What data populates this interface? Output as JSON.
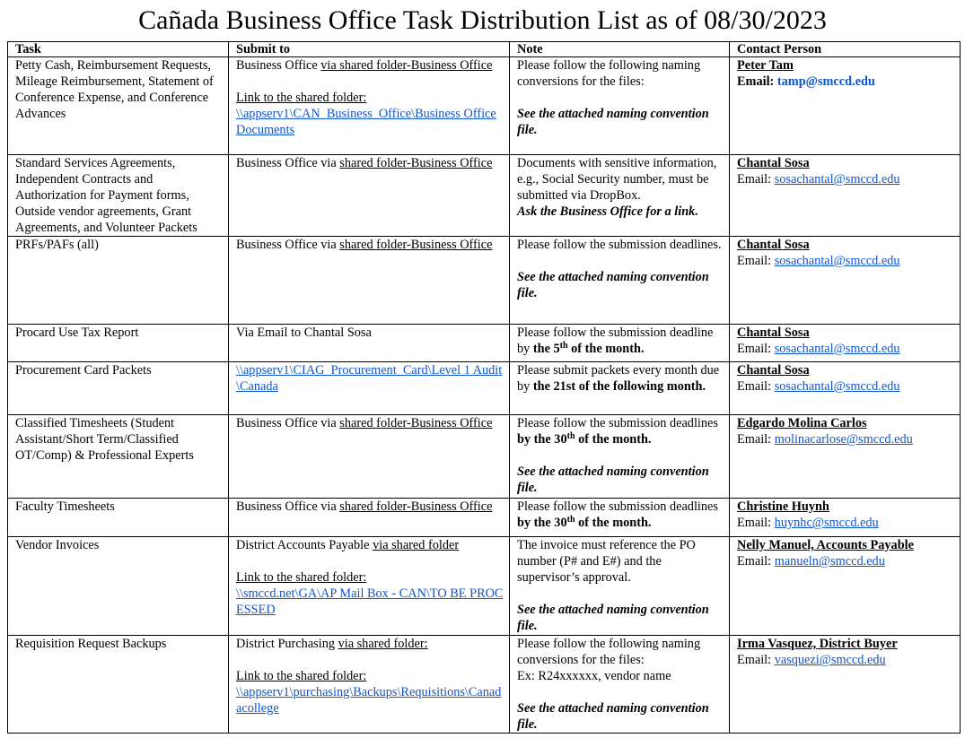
{
  "title": "Cañada Business Office Task Distribution List as of 08/30/2023",
  "table": {
    "header": [
      "Task",
      "Submit to",
      "Note",
      "Contact Person"
    ],
    "rows": [
      [
        [
          [
            [
              {
                "text": "Petty Cash, Reimbursement Requests, Mileage Reimbursement, Statement of Conference Expense, and Conference Advances"
              }
            ]
          ]
        ],
        [
          [
            [
              {
                "text": "Business Office "
              },
              {
                "text": "via shared folder-Business Office",
                "style": "underline"
              }
            ]
          ],
          [
            [
              {
                "text": "Link to the shared folder:",
                "style": "underline"
              }
            ],
            [
              {
                "text": "\\\\appserv1\\CAN_Business_Office\\Business Office Documents",
                "style": "link"
              }
            ]
          ]
        ],
        [
          [
            [
              {
                "text": "Please follow the following naming conversions for the files:"
              }
            ]
          ],
          [
            [
              {
                "text": "See the attached naming convention file.",
                "style": "bold-italic"
              }
            ]
          ]
        ],
        [
          [
            [
              {
                "text": "Peter Tam",
                "style": "bold-underline"
              }
            ],
            [
              {
                "text": "Email: ",
                "style": "bold"
              },
              {
                "text": "tamp@smccd.edu",
                "style": "bold-blue"
              }
            ]
          ]
        ]
      ],
      [
        [
          [
            [
              {
                "text": "Standard Services Agreements, Independent Contracts and Authorization for Payment forms, Outside vendor agreements, Grant Agreements, and Volunteer Packets"
              }
            ]
          ]
        ],
        [
          [
            [
              {
                "text": "Business Office via "
              },
              {
                "text": "shared folder-Business Office",
                "style": "underline"
              }
            ]
          ]
        ],
        [
          [
            [
              {
                "text": "Documents with sensitive information, e.g., Social Security number, must be submitted via DropBox."
              }
            ],
            [
              {
                "text": "Ask the Business Office for a link.",
                "style": "bold-italic"
              }
            ]
          ]
        ],
        [
          [
            [
              {
                "text": "Chantal Sosa",
                "style": "bold-underline"
              }
            ],
            [
              {
                "text": "Email:  "
              },
              {
                "text": "sosachantal@smccd.edu",
                "style": "link"
              }
            ]
          ]
        ]
      ],
      [
        [
          [
            [
              {
                "text": "PRFs/PAFs (all)"
              }
            ]
          ]
        ],
        [
          [
            [
              {
                "text": "Business Office via "
              },
              {
                "text": "shared folder-Business Office",
                "style": "underline"
              }
            ]
          ]
        ],
        [
          [
            [
              {
                "text": "Please follow the submission deadlines."
              }
            ]
          ],
          [
            [
              {
                "text": "See the attached naming convention file.",
                "style": "bold-italic"
              }
            ]
          ]
        ],
        [
          [
            [
              {
                "text": "Chantal Sosa",
                "style": "bold-underline"
              }
            ],
            [
              {
                "text": "Email:  "
              },
              {
                "text": "sosachantal@smccd.edu",
                "style": "link"
              }
            ]
          ]
        ]
      ],
      [
        [
          [
            [
              {
                "text": "Procard Use Tax Report"
              }
            ]
          ]
        ],
        [
          [
            [
              {
                "text": "Via Email to Chantal Sosa"
              }
            ]
          ]
        ],
        [
          [
            [
              {
                "text": "Please follow the submission deadline by "
              },
              {
                "text": "the 5",
                "style": "bold"
              },
              {
                "text": "th",
                "style": "bold-superscript"
              },
              {
                "text": " of the month.",
                "style": "bold"
              }
            ]
          ]
        ],
        [
          [
            [
              {
                "text": "Chantal Sosa",
                "style": "bold-underline"
              }
            ],
            [
              {
                "text": "Email:  "
              },
              {
                "text": "sosachantal@smccd.edu",
                "style": "link"
              }
            ]
          ]
        ]
      ],
      [
        [
          [
            [
              {
                "text": "Procurement Card Packets"
              }
            ]
          ]
        ],
        [
          [
            [
              {
                "text": "\\\\appserv1\\CIAG_Procurement_Card\\Level 1 Audit\\Canada",
                "style": "link"
              }
            ]
          ]
        ],
        [
          [
            [
              {
                "text": "Please submit packets every month due by "
              },
              {
                "text": "the 21st of the following month.",
                "style": "bold"
              }
            ]
          ]
        ],
        [
          [
            [
              {
                "text": "Chantal Sosa",
                "style": "bold-underline"
              }
            ],
            [
              {
                "text": "Email:  "
              },
              {
                "text": "sosachantal@smccd.edu",
                "style": "link"
              }
            ]
          ]
        ]
      ],
      [
        [
          [
            [
              {
                "text": "Classified Timesheets (Student Assistant/Short Term/Classified OT/Comp) & Professional Experts"
              }
            ]
          ]
        ],
        [
          [
            [
              {
                "text": "Business Office via "
              },
              {
                "text": "shared folder-Business Office",
                "style": "underline"
              }
            ]
          ]
        ],
        [
          [
            [
              {
                "text": "Please follow the submission deadlines "
              },
              {
                "text": "by the 30",
                "style": "bold"
              },
              {
                "text": "th",
                "style": "bold-superscript"
              },
              {
                "text": " of the month.",
                "style": "bold"
              }
            ]
          ],
          [
            [
              {
                "text": "See the attached naming convention file.",
                "style": "bold-italic"
              }
            ]
          ]
        ],
        [
          [
            [
              {
                "text": "Edgardo Molina Carlos",
                "style": "bold-underline"
              }
            ],
            [
              {
                "text": "Email:  "
              },
              {
                "text": "molinacarlose@smccd.edu",
                "style": "link"
              }
            ]
          ]
        ]
      ],
      [
        [
          [
            [
              {
                "text": "Faculty Timesheets"
              }
            ]
          ]
        ],
        [
          [
            [
              {
                "text": "Business Office via "
              },
              {
                "text": "shared folder-Business Office",
                "style": "underline"
              }
            ]
          ]
        ],
        [
          [
            [
              {
                "text": "Please follow the submission deadlines "
              },
              {
                "text": "by the 30",
                "style": "bold"
              },
              {
                "text": "th",
                "style": "bold-superscript"
              },
              {
                "text": " of the month.",
                "style": "bold"
              }
            ]
          ]
        ],
        [
          [
            [
              {
                "text": "Christine Huynh",
                "style": "bold-underline"
              }
            ],
            [
              {
                "text": "Email: "
              },
              {
                "text": "huynhc@smccd.edu",
                "style": "link"
              }
            ]
          ]
        ]
      ],
      [
        [
          [
            [
              {
                "text": "Vendor Invoices"
              }
            ]
          ]
        ],
        [
          [
            [
              {
                "text": "District Accounts Payable "
              },
              {
                "text": "via shared folder",
                "style": "underline"
              }
            ]
          ],
          [
            [
              {
                "text": "Link to the shared folder:",
                "style": "underline"
              }
            ],
            [
              {
                "text": "\\\\smccd.net\\GA\\AP Mail Box - CAN\\TO BE PROCESSED",
                "style": "link"
              }
            ]
          ]
        ],
        [
          [
            [
              {
                "text": "The invoice must reference the PO number (P# and E#) and the supervisor’s approval."
              }
            ]
          ],
          [
            [
              {
                "text": "See the attached naming convention file.",
                "style": "bold-italic"
              }
            ]
          ]
        ],
        [
          [
            [
              {
                "text": "Nelly Manuel, Accounts Payable",
                "style": "bold-underline"
              }
            ],
            [
              {
                "text": "Email: "
              },
              {
                "text": "manueln@smccd.edu",
                "style": "link"
              }
            ]
          ]
        ]
      ],
      [
        [
          [
            [
              {
                "text": "Requisition Request Backups"
              }
            ]
          ]
        ],
        [
          [
            [
              {
                "text": "District Purchasing "
              },
              {
                "text": "via shared folder:",
                "style": "underline"
              }
            ]
          ],
          [
            [
              {
                "text": "Link to the shared folder:",
                "style": "underline"
              }
            ],
            [
              {
                "text": "\\\\appserv1\\purchasing\\Backups\\Requisitions\\Canadacollege",
                "style": "link"
              }
            ]
          ]
        ],
        [
          [
            [
              {
                "text": "Please follow the following naming conversions for the files:"
              }
            ],
            [
              {
                "text": "Ex: R24xxxxxx, vendor name"
              }
            ]
          ],
          [
            [
              {
                "text": "See the attached naming convention file.",
                "style": "bold-italic"
              }
            ]
          ]
        ],
        [
          [
            [
              {
                "text": "Irma Vasquez, District Buyer",
                "style": "bold-underline"
              }
            ],
            [
              {
                "text": "Email: "
              },
              {
                "text": "vasquezi@smccd.edu",
                "style": "link"
              }
            ]
          ]
        ]
      ]
    ]
  }
}
